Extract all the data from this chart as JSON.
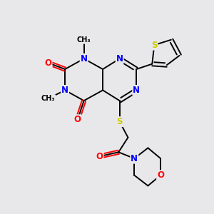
{
  "bg_color": "#e8e8eb",
  "atom_colors": {
    "C": "#000000",
    "N": "#0000ff",
    "O": "#ff0000",
    "S": "#cccc00"
  },
  "bond_color": "#000000",
  "figsize": [
    3.0,
    3.0
  ],
  "dpi": 100
}
